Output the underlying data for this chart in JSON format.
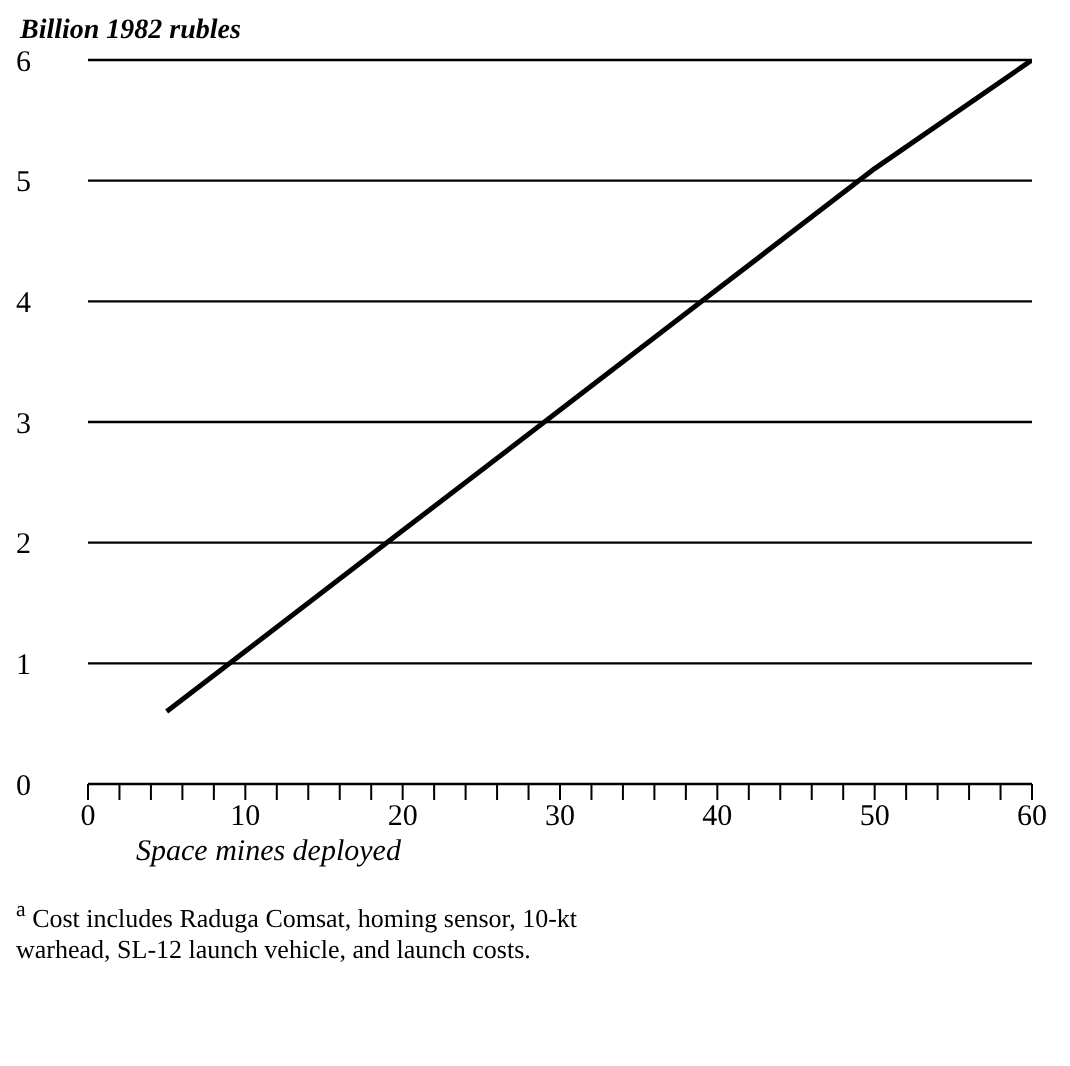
{
  "chart_data": {
    "type": "line",
    "ylabel": "Billion 1982 rubles",
    "xlabel": "Space mines deployed",
    "x": [
      5,
      10,
      20,
      30,
      40,
      50,
      60
    ],
    "series": [
      {
        "color": "#000000",
        "values": [
          0.6,
          1.1,
          2.1,
          3.1,
          4.1,
          5.1,
          6.0
        ]
      }
    ],
    "xlim": [
      0,
      60
    ],
    "xticks": [
      0,
      {
        "value": 2,
        "label": null
      },
      {
        "value": 4,
        "label": null
      },
      {
        "value": 6,
        "label": null
      },
      {
        "value": 8,
        "label": null
      },
      10,
      {
        "value": 12,
        "label": null
      },
      {
        "value": 14,
        "label": null
      },
      {
        "value": 16,
        "label": null
      },
      {
        "value": 18,
        "label": null
      },
      20,
      {
        "value": 22,
        "label": null
      },
      {
        "value": 24,
        "label": null
      },
      {
        "value": 26,
        "label": null
      },
      {
        "value": 28,
        "label": null
      },
      30,
      {
        "value": 32,
        "label": null
      },
      {
        "value": 34,
        "label": null
      },
      {
        "value": 36,
        "label": null
      },
      {
        "value": 38,
        "label": null
      },
      40,
      {
        "value": 42,
        "label": null
      },
      {
        "value": 44,
        "label": null
      },
      {
        "value": 46,
        "label": null
      },
      {
        "value": 48,
        "label": null
      },
      50,
      {
        "value": 52,
        "label": null
      },
      {
        "value": 54,
        "label": null
      },
      {
        "value": 56,
        "label": null
      },
      {
        "value": 58,
        "label": null
      },
      60
    ],
    "ylim": [
      0,
      6
    ],
    "yticks": [
      0,
      1,
      2,
      3,
      4,
      5,
      6
    ],
    "grid": "y",
    "marker": "none",
    "line_style": "solid",
    "legend": false,
    "annotations": [
      "$^{a}$ Cost includes Raduga Comsat, homing sensor, 10-kt warhead, SL-12 launch vehicle, and launch costs."
    ]
  }
}
